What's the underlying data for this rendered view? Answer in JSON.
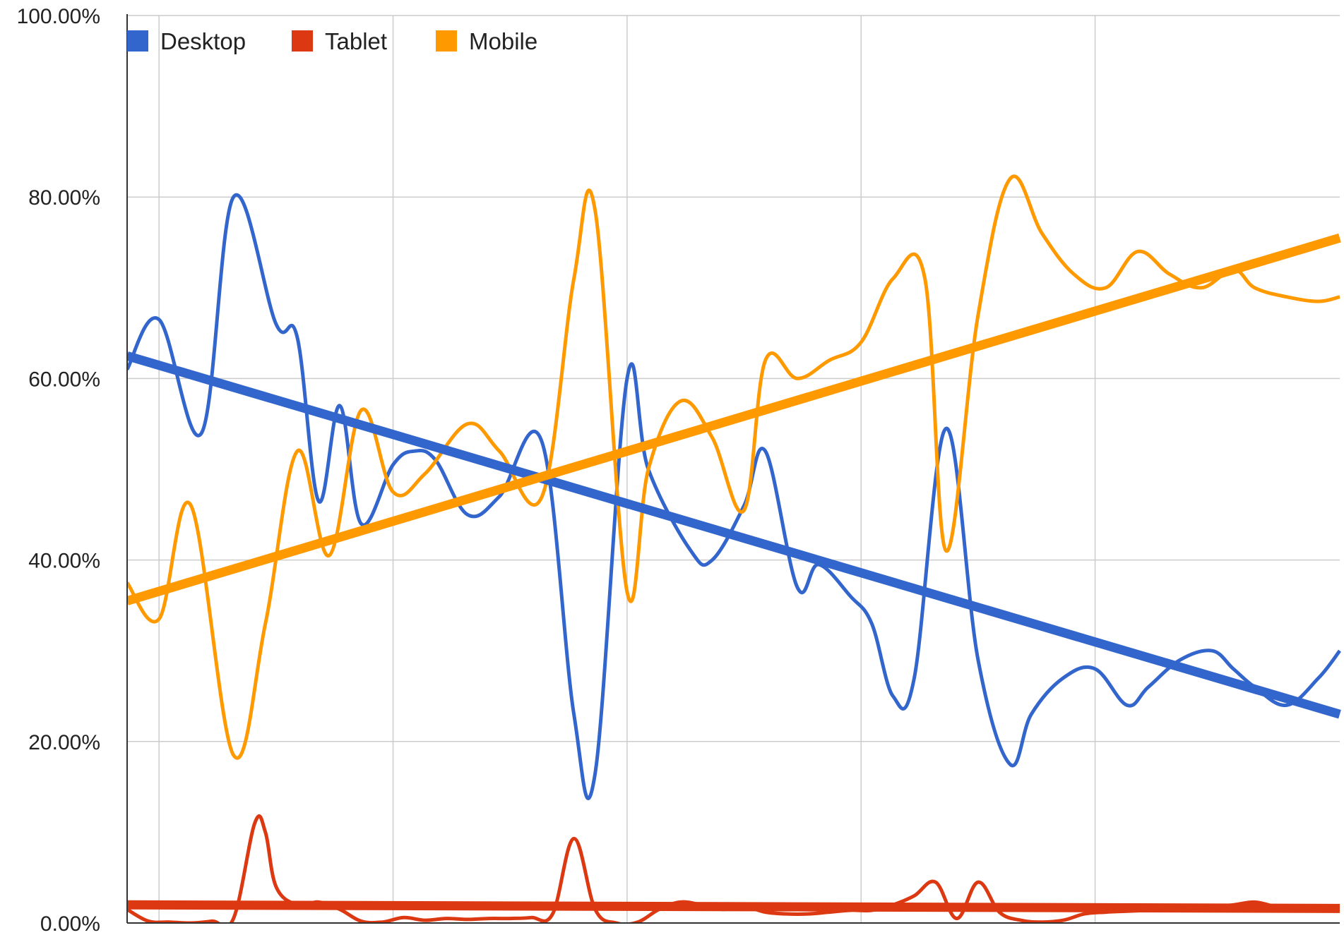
{
  "chart_data": {
    "type": "line",
    "title": "",
    "xlabel": "",
    "ylabel": "",
    "ylim": [
      0,
      100
    ],
    "y_ticks": [
      "0.00%",
      "20.00%",
      "40.00%",
      "60.00%",
      "80.00%",
      "100.00%"
    ],
    "y_tick_values": [
      0,
      20,
      40,
      60,
      80,
      100
    ],
    "x_gridlines": [
      1.5,
      12.5,
      23.5,
      34.5,
      45.5
    ],
    "x_range": [
      0,
      57
    ],
    "grid": true,
    "legend_position": "top-left",
    "series": [
      {
        "name": "Desktop",
        "color": "#3366cc",
        "x": [
          0,
          1.5,
          3.5,
          5,
          7,
          8,
          9,
          10,
          11,
          12.5,
          13.5,
          14.5,
          16,
          17.5,
          19.5,
          21,
          22,
          23.5,
          24.5,
          26.5,
          27.5,
          29,
          30,
          31.5,
          32.5,
          34,
          35,
          36,
          37,
          38.5,
          40,
          41.5,
          42.5,
          44,
          45.5,
          47,
          48,
          49.5,
          51,
          52,
          53,
          54.5,
          56,
          57
        ],
        "values": [
          61,
          66.5,
          54,
          80,
          66,
          64.5,
          46.5,
          57,
          44,
          50.5,
          52,
          51,
          45,
          47,
          53,
          23,
          16.5,
          60,
          50,
          41,
          40,
          46,
          52,
          37,
          39.5,
          36,
          33,
          25,
          27,
          54.5,
          29,
          17.5,
          23,
          27,
          28,
          24,
          26,
          29,
          30,
          28,
          26,
          24,
          27,
          30
        ]
      },
      {
        "name": "Tablet",
        "color": "#dc3912",
        "x": [
          0,
          1,
          2,
          3,
          4,
          5,
          6,
          6.5,
          7,
          8,
          9,
          10,
          11,
          12,
          13,
          14,
          15,
          16,
          17,
          18,
          19,
          20,
          21,
          22,
          23,
          24,
          25,
          26,
          27,
          28,
          29,
          30,
          31,
          32,
          33,
          34,
          35,
          36,
          37,
          38,
          39,
          40,
          41,
          42,
          43,
          44,
          45,
          46,
          47,
          48,
          49,
          50,
          51,
          52,
          53,
          54,
          55,
          56,
          57
        ],
        "values": [
          1.5,
          0.2,
          0.1,
          0,
          0.2,
          0.5,
          11,
          10,
          4,
          2,
          2.3,
          1.5,
          0.2,
          0.1,
          0.6,
          0.3,
          0.5,
          0.4,
          0.5,
          0.5,
          0.6,
          1,
          9.3,
          1.5,
          0,
          0.1,
          1.5,
          2.3,
          2,
          1.5,
          1.8,
          1.2,
          1,
          1,
          1.2,
          1.4,
          1.4,
          2,
          3,
          4.5,
          0.5,
          4.5,
          1.2,
          0.3,
          0.1,
          0.3,
          1,
          1.2,
          1.3,
          1.4,
          1.5,
          1.6,
          1.8,
          2,
          2.3,
          1.8,
          1.5,
          1.4,
          1.5
        ]
      },
      {
        "name": "Mobile",
        "color": "#ff9900",
        "x": [
          0,
          1.5,
          3,
          5,
          6.5,
          8,
          9.5,
          11,
          12.5,
          14,
          16,
          17.5,
          19.5,
          21,
          22,
          23.5,
          24.5,
          26,
          27.5,
          29,
          30,
          31.5,
          33,
          34.5,
          36,
          37.5,
          38.5,
          40,
          41.5,
          43,
          44.5,
          46,
          47.5,
          49,
          50.5,
          52,
          53,
          54.5,
          56,
          57
        ],
        "values": [
          37.5,
          33.5,
          46,
          18.5,
          33,
          52,
          40.5,
          56.5,
          47.5,
          49.5,
          55,
          52,
          47,
          71,
          78.5,
          36.5,
          50,
          57.5,
          53.5,
          45.5,
          62,
          60,
          62,
          64,
          71,
          71,
          41,
          67,
          82,
          76,
          71.5,
          70,
          74,
          71.5,
          70,
          72,
          70,
          69,
          68.5,
          69
        ]
      },
      {
        "name": "",
        "color": "#3366cc",
        "role": "trendline",
        "x": [
          0,
          57
        ],
        "values": [
          62.5,
          23
        ]
      },
      {
        "name": "",
        "color": "#dc3912",
        "role": "trendline",
        "x": [
          0,
          57
        ],
        "values": [
          2,
          1.6
        ]
      },
      {
        "name": "",
        "color": "#ff9900",
        "role": "trendline",
        "x": [
          0,
          57
        ],
        "values": [
          35.5,
          75.5
        ]
      }
    ],
    "legend": [
      {
        "name": "Desktop",
        "color": "#3366cc"
      },
      {
        "name": "Tablet",
        "color": "#dc3912"
      },
      {
        "name": "Mobile",
        "color": "#ff9900"
      }
    ]
  }
}
